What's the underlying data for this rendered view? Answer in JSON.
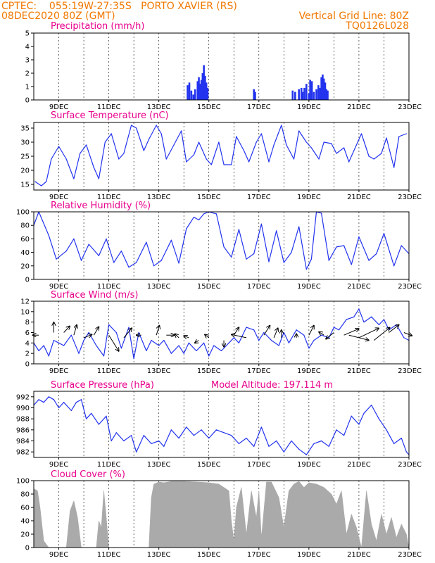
{
  "header": {
    "left_line1": "CPTEC:    055:19W-27:35S   PORTO XAVIER (RS)",
    "left_line2": "08DEC2020 80Z (GMT)",
    "right_line1": "Vertical Grid Line: 80Z",
    "right_line2": "TQ0126L028"
  },
  "x_tick_labels": [
    "9DEC",
    "11DEC",
    "13DEC",
    "15DEC",
    "17DEC",
    "19DEC",
    "21DEC",
    "23DEC"
  ],
  "colors": {
    "header": "#f07800",
    "title": "#e8008c",
    "series": "#2233ee",
    "cloud": "#aaaaaa"
  },
  "chart_data": [
    {
      "type": "bar",
      "title": "Precipitation (mm/h)",
      "ylim": [
        0,
        5
      ],
      "yticks": [
        "0",
        "1",
        "2",
        "3",
        "4",
        "5"
      ],
      "x_unit": "day of December 2020 (grid lines at 80Z)",
      "x": [
        14.15,
        14.22,
        14.3,
        14.38,
        14.45,
        14.55,
        14.6,
        14.65,
        14.7,
        14.75,
        14.8,
        14.85,
        14.9,
        14.95,
        16.8,
        16.85,
        18.35,
        18.45,
        18.6,
        18.7,
        18.75,
        18.82,
        18.9,
        19.0,
        19.05,
        19.12,
        19.2,
        19.3,
        19.38,
        19.45,
        19.5,
        19.55,
        19.6,
        19.65,
        19.7,
        19.75
      ],
      "values": [
        1.1,
        1.3,
        0.7,
        0.4,
        0.8,
        1.4,
        1.7,
        1.2,
        1.5,
        2.0,
        2.6,
        1.8,
        1.3,
        0.9,
        0.8,
        0.6,
        0.7,
        0.6,
        0.8,
        0.9,
        0.6,
        0.9,
        1.2,
        0.5,
        1.5,
        1.4,
        0.6,
        0.8,
        1.1,
        0.9,
        1.7,
        1.9,
        1.6,
        1.3,
        0.8,
        0.7
      ]
    },
    {
      "type": "line",
      "title": "Surface Temperature (nC)",
      "ylim": [
        13,
        37
      ],
      "yticks": [
        "15",
        "20",
        "25",
        "30",
        "35"
      ],
      "x": [
        8.05,
        8.3,
        8.5,
        8.7,
        9.0,
        9.3,
        9.6,
        9.85,
        10.1,
        10.4,
        10.6,
        10.85,
        11.1,
        11.4,
        11.6,
        11.9,
        12.1,
        12.4,
        12.6,
        12.9,
        13.1,
        13.3,
        13.6,
        13.9,
        14.1,
        14.4,
        14.6,
        14.9,
        15.1,
        15.4,
        15.6,
        15.9,
        16.1,
        16.4,
        16.6,
        16.9,
        17.1,
        17.4,
        17.6,
        17.9,
        18.1,
        18.4,
        18.6,
        18.9,
        19.1,
        19.4,
        19.6,
        19.9,
        20.1,
        20.4,
        20.6,
        20.9,
        21.1,
        21.4,
        21.6,
        21.9,
        22.1,
        22.4,
        22.6,
        22.9
      ],
      "values": [
        16,
        14.5,
        16,
        24,
        28.5,
        24,
        17,
        26,
        29,
        21,
        17,
        30,
        33,
        24,
        26,
        36,
        35,
        27,
        31,
        36,
        33,
        24,
        29,
        34,
        23,
        25.5,
        30,
        24,
        22,
        30,
        22,
        22,
        32,
        27,
        23,
        30,
        33,
        23,
        29,
        36,
        29,
        24,
        34,
        30,
        28,
        24,
        30,
        29.5,
        26,
        28,
        23,
        29,
        33,
        25,
        24,
        26,
        31.5,
        21,
        32,
        33
      ]
    },
    {
      "type": "line",
      "title": "Relative Humidity (%)",
      "ylim": [
        0,
        100
      ],
      "yticks": [
        "0",
        "20",
        "40",
        "60",
        "80",
        "100"
      ],
      "x": [
        8.0,
        8.2,
        8.6,
        8.9,
        9.3,
        9.6,
        9.9,
        10.2,
        10.6,
        10.9,
        11.2,
        11.5,
        11.8,
        12.1,
        12.5,
        12.8,
        13.1,
        13.5,
        13.8,
        14.1,
        14.4,
        14.6,
        14.8,
        15.0,
        15.3,
        15.6,
        15.9,
        16.2,
        16.5,
        16.8,
        17.1,
        17.4,
        17.7,
        18.0,
        18.3,
        18.6,
        18.9,
        19.1,
        19.3,
        19.5,
        19.8,
        20.1,
        20.4,
        20.7,
        21.0,
        21.4,
        21.7,
        22.0,
        22.4,
        22.7,
        23.0
      ],
      "values": [
        80,
        100,
        65,
        30,
        42,
        60,
        28,
        52,
        35,
        60,
        25,
        42,
        18,
        25,
        55,
        20,
        28,
        58,
        24,
        75,
        92,
        88,
        97,
        100,
        97,
        48,
        33,
        74,
        30,
        38,
        82,
        26,
        72,
        25,
        40,
        78,
        15,
        30,
        100,
        98,
        28,
        48,
        50,
        22,
        63,
        28,
        38,
        68,
        20,
        50,
        38
      ]
    },
    {
      "type": "line",
      "title": "Surface Wind (m/s)",
      "ylim": [
        0,
        12
      ],
      "yticks": [
        "0",
        "2",
        "4",
        "6",
        "8",
        "10",
        "12"
      ],
      "x": [
        8.0,
        8.2,
        8.4,
        8.6,
        8.8,
        9.0,
        9.2,
        9.5,
        9.8,
        10.0,
        10.2,
        10.5,
        10.8,
        11.0,
        11.3,
        11.5,
        11.8,
        12.0,
        12.2,
        12.5,
        12.7,
        13.0,
        13.2,
        13.5,
        13.8,
        14.0,
        14.2,
        14.5,
        14.8,
        15.0,
        15.2,
        15.5,
        15.8,
        16.0,
        16.2,
        16.5,
        16.8,
        17.0,
        17.2,
        17.5,
        17.8,
        18.0,
        18.2,
        18.5,
        18.8,
        19.0,
        19.2,
        19.5,
        19.8,
        20.0,
        20.2,
        20.5,
        20.8,
        21.0,
        21.2,
        21.5,
        21.8,
        22.0,
        22.2,
        22.5,
        22.8,
        23.0
      ],
      "values": [
        4.0,
        2.5,
        3.5,
        1.5,
        4.5,
        4.0,
        3.5,
        5.5,
        2.0,
        4.5,
        6.0,
        3.5,
        1.5,
        7.5,
        6.0,
        3.0,
        7.0,
        1.0,
        6.0,
        2.5,
        4.5,
        3.5,
        4.5,
        2.0,
        3.5,
        2.0,
        4.0,
        2.5,
        4.0,
        1.5,
        3.5,
        2.5,
        4.0,
        5.0,
        4.0,
        7.0,
        6.5,
        4.5,
        6.0,
        4.5,
        3.5,
        6.0,
        4.0,
        6.5,
        5.5,
        3.0,
        4.5,
        5.5,
        5.0,
        7.0,
        6.5,
        8.5,
        9.0,
        10.5,
        8.0,
        9.0,
        7.5,
        8.5,
        6.5,
        7.5,
        5.0,
        4.5
      ],
      "vectors": [
        {
          "x": 8.2,
          "y": 5.5,
          "u": -0.6,
          "v": 0.0
        },
        {
          "x": 8.8,
          "y": 6.0,
          "u": 0.0,
          "v": 1.6
        },
        {
          "x": 9.2,
          "y": 6.0,
          "u": 0.6,
          "v": 1.0
        },
        {
          "x": 9.6,
          "y": 5.5,
          "u": 0.3,
          "v": 1.6
        },
        {
          "x": 10.0,
          "y": 5.0,
          "u": 0.8,
          "v": 0.5
        },
        {
          "x": 10.4,
          "y": 5.5,
          "u": 0.5,
          "v": 1.3
        },
        {
          "x": 11.0,
          "y": 5.5,
          "u": 1.0,
          "v": -2.5
        },
        {
          "x": 11.6,
          "y": 5.0,
          "u": 0.8,
          "v": 1.5
        },
        {
          "x": 12.3,
          "y": 5.5,
          "u": -0.5,
          "v": 0.0
        },
        {
          "x": 12.9,
          "y": 5.5,
          "u": 0.3,
          "v": 1.5
        },
        {
          "x": 13.3,
          "y": 5.5,
          "u": 0.8,
          "v": 0.0
        },
        {
          "x": 13.8,
          "y": 5.0,
          "u": -0.4,
          "v": 0.6
        },
        {
          "x": 14.2,
          "y": 5.0,
          "u": -0.5,
          "v": 0.3
        },
        {
          "x": 14.6,
          "y": 4.5,
          "u": -0.4,
          "v": -0.4
        },
        {
          "x": 15.0,
          "y": 5.0,
          "u": -0.4,
          "v": 0.5
        },
        {
          "x": 15.6,
          "y": 4.5,
          "u": 0.0,
          "v": -1.0
        },
        {
          "x": 16.0,
          "y": 5.5,
          "u": 0.5,
          "v": 1.2
        },
        {
          "x": 16.5,
          "y": 5.0,
          "u": -1.5,
          "v": 0.5
        },
        {
          "x": 17.2,
          "y": 5.5,
          "u": 0.6,
          "v": 1.5
        },
        {
          "x": 17.6,
          "y": 5.0,
          "u": 0.4,
          "v": 1.5
        },
        {
          "x": 17.9,
          "y": 5.0,
          "u": 0.0,
          "v": 1.2
        },
        {
          "x": 18.5,
          "y": 5.0,
          "u": 0.0,
          "v": 0.6
        },
        {
          "x": 19.0,
          "y": 5.5,
          "u": 0.5,
          "v": 1.5
        },
        {
          "x": 19.6,
          "y": 5.5,
          "u": -0.5,
          "v": 0.5
        },
        {
          "x": 20.0,
          "y": 6.0,
          "u": -0.8,
          "v": -1.0
        },
        {
          "x": 20.4,
          "y": 5.5,
          "u": 1.5,
          "v": 1.0
        },
        {
          "x": 20.6,
          "y": 5.5,
          "u": 2.0,
          "v": -0.8
        },
        {
          "x": 21.0,
          "y": 5.0,
          "u": 2.0,
          "v": 1.5
        },
        {
          "x": 21.6,
          "y": 4.5,
          "u": 1.6,
          "v": 2.0
        },
        {
          "x": 22.2,
          "y": 6.0,
          "u": 1.0,
          "v": 1.2
        },
        {
          "x": 22.8,
          "y": 6.0,
          "u": 0.8,
          "v": -0.5
        }
      ]
    },
    {
      "type": "line",
      "title": "Surface Pressure (hPa)",
      "annotation": "Model Altitude: 197.114 m",
      "ylim": [
        981,
        993
      ],
      "yticks": [
        "982",
        "984",
        "986",
        "988",
        "990",
        "992"
      ],
      "x": [
        8.0,
        8.2,
        8.4,
        8.6,
        8.8,
        9.0,
        9.2,
        9.5,
        9.7,
        9.9,
        10.1,
        10.3,
        10.6,
        10.9,
        11.1,
        11.3,
        11.6,
        11.9,
        12.1,
        12.4,
        12.7,
        13.0,
        13.2,
        13.5,
        13.8,
        14.1,
        14.4,
        14.7,
        15.0,
        15.3,
        15.6,
        15.9,
        16.2,
        16.5,
        16.8,
        17.1,
        17.4,
        17.7,
        18.0,
        18.3,
        18.6,
        18.9,
        19.2,
        19.5,
        19.8,
        20.1,
        20.4,
        20.7,
        21.0,
        21.2,
        21.5,
        21.8,
        22.1,
        22.4,
        22.7,
        22.9,
        23.0
      ],
      "values": [
        990.5,
        991.5,
        991.0,
        992.0,
        991.5,
        990.0,
        991.0,
        989.5,
        991.0,
        991.5,
        988.0,
        989.0,
        987.0,
        988.5,
        984.0,
        985.5,
        984.0,
        985.0,
        982.0,
        985.0,
        983.5,
        984.0,
        983.0,
        986.0,
        984.5,
        986.5,
        985.0,
        986.0,
        984.5,
        986.0,
        985.5,
        985.0,
        983.5,
        984.5,
        983.0,
        986.5,
        983.0,
        984.0,
        982.0,
        984.0,
        982.5,
        981.5,
        983.5,
        984.0,
        983.0,
        986.0,
        985.0,
        988.5,
        987.0,
        989.0,
        990.5,
        988.0,
        986.0,
        983.5,
        984.5,
        982.0,
        981.5
      ]
    },
    {
      "type": "area",
      "title": "Cloud Cover (%)",
      "ylim": [
        0,
        100
      ],
      "yticks": [
        "0",
        "20",
        "40",
        "60",
        "80",
        "100"
      ],
      "x": [
        8.0,
        8.15,
        8.25,
        8.4,
        8.6,
        8.9,
        9.3,
        9.45,
        9.6,
        9.75,
        9.9,
        10.5,
        10.6,
        10.7,
        10.8,
        10.9,
        11.0,
        12.6,
        12.7,
        12.8,
        13.0,
        13.2,
        13.5,
        14.0,
        14.5,
        15.0,
        15.4,
        15.8,
        15.9,
        16.0,
        16.1,
        16.3,
        16.5,
        16.7,
        16.9,
        17.0,
        17.1,
        17.3,
        17.5,
        17.8,
        18.0,
        18.2,
        18.4,
        18.6,
        18.8,
        19.0,
        19.3,
        19.6,
        19.9,
        20.1,
        20.3,
        20.5,
        20.7,
        20.9,
        21.1,
        21.3,
        21.5,
        21.7,
        21.9,
        22.1,
        22.3,
        22.5,
        22.7,
        22.9,
        23.0
      ],
      "values": [
        88,
        85,
        60,
        10,
        0,
        0,
        0,
        55,
        70,
        45,
        0,
        0,
        40,
        30,
        85,
        45,
        0,
        0,
        75,
        95,
        98,
        97,
        99,
        99,
        98,
        97,
        95,
        85,
        40,
        10,
        60,
        90,
        20,
        85,
        45,
        85,
        15,
        98,
        98,
        75,
        30,
        85,
        95,
        99,
        90,
        97,
        95,
        90,
        80,
        65,
        85,
        20,
        50,
        30,
        0,
        85,
        35,
        10,
        50,
        20,
        45,
        15,
        35,
        20,
        0
      ]
    }
  ]
}
